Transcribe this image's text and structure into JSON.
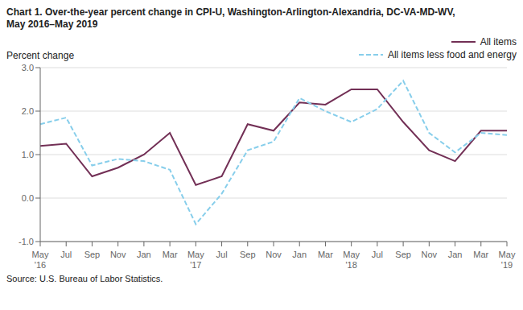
{
  "chart_data": {
    "type": "line",
    "title": "Chart 1. Over-the-year percent change in CPI-U, Washington-Arlington-Alexandria, DC-VA-MD-WV,\nMay 2016–May 2019",
    "y_label": "Percent change",
    "source": "Source: U.S. Bureau of Labor Statistics.",
    "categories": [
      "May\n'16",
      "Jul",
      "Sep",
      "Nov",
      "Jan",
      "Mar",
      "May\n'17",
      "Jul",
      "Sep",
      "Nov",
      "Jan",
      "Mar",
      "May\n'18",
      "Jul",
      "Sep",
      "Nov",
      "Jan",
      "Mar",
      "May\n'19"
    ],
    "series": [
      {
        "name": "All items",
        "color": "#722F55",
        "line_style": "solid",
        "values": [
          1.2,
          1.25,
          0.5,
          0.7,
          1.0,
          1.5,
          0.3,
          0.5,
          1.7,
          1.55,
          2.2,
          2.15,
          2.5,
          2.5,
          1.75,
          1.1,
          0.85,
          1.55,
          1.55
        ]
      },
      {
        "name": "All items less food and energy",
        "color": "#87CEEB",
        "line_style": "dashed",
        "values": [
          1.7,
          1.85,
          0.75,
          0.9,
          0.85,
          0.65,
          -0.6,
          0.1,
          1.1,
          1.3,
          2.3,
          2.0,
          1.75,
          2.05,
          2.7,
          1.5,
          1.05,
          1.5,
          1.45
        ]
      }
    ],
    "ylim": [
      -1.0,
      3.0
    ],
    "yticks": [
      {
        "value": -1.0,
        "label": "-1.0"
      },
      {
        "value": 0.0,
        "label": "0.0"
      },
      {
        "value": 1.0,
        "label": "1.0"
      },
      {
        "value": 2.0,
        "label": "2.0"
      },
      {
        "value": 3.0,
        "label": "3.0"
      }
    ],
    "grid": true,
    "legend": "upper right"
  }
}
